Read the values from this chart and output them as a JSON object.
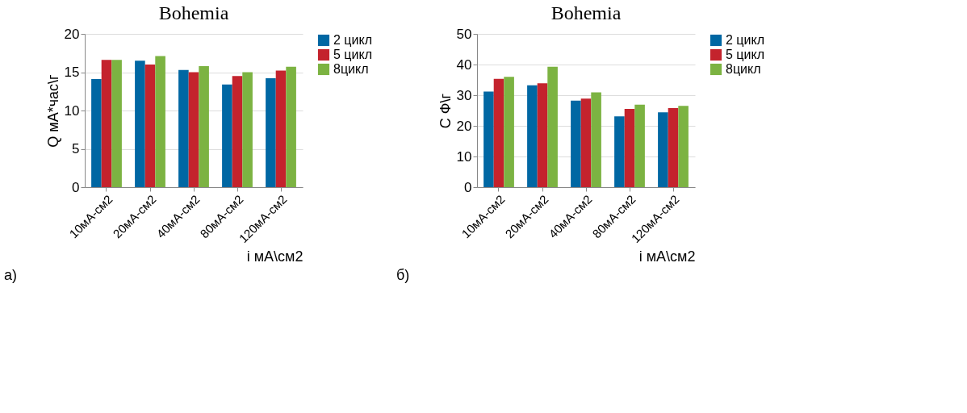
{
  "chart_data": [
    {
      "type": "bar",
      "title": "Bohemia",
      "xlabel": "i мА\\см2",
      "ylabel": "Q  мА*час\\г",
      "categories": [
        "10мА-см2",
        "20мА-см2",
        "40мА-см2",
        "80мА-см2",
        "120мА-см2"
      ],
      "series": [
        {
          "name": "2 цикл",
          "color": "#0067a3",
          "values": [
            14.1,
            16.5,
            15.3,
            13.4,
            14.2
          ]
        },
        {
          "name": "5 цикл",
          "color": "#c4232d",
          "values": [
            16.6,
            16.0,
            15.0,
            14.5,
            15.2
          ]
        },
        {
          "name": "8цикл",
          "color": "#7cb342",
          "values": [
            16.6,
            17.1,
            15.8,
            15.0,
            15.7
          ]
        }
      ],
      "ylim": [
        0,
        20
      ],
      "yticks": [
        0,
        5,
        10,
        15,
        20
      ],
      "grid": "y",
      "legend": "right",
      "annotations": [
        "а)"
      ]
    },
    {
      "type": "bar",
      "title": "Bohemia",
      "xlabel": "i мА\\см2",
      "ylabel": "С  Ф\\г",
      "categories": [
        "10мА-см2",
        "20мА-см2",
        "40мА-см2",
        "80мА-см2",
        "120мА-см2"
      ],
      "series": [
        {
          "name": "2 цикл",
          "color": "#0067a3",
          "values": [
            31.2,
            33.2,
            28.2,
            23.1,
            24.4
          ]
        },
        {
          "name": "5 цикл",
          "color": "#c4232d",
          "values": [
            35.3,
            33.9,
            28.9,
            25.5,
            25.8
          ]
        },
        {
          "name": "8цикл",
          "color": "#7cb342",
          "values": [
            36.0,
            39.3,
            30.9,
            26.9,
            26.5
          ]
        }
      ],
      "ylim": [
        0,
        50
      ],
      "yticks": [
        0,
        10,
        20,
        30,
        40,
        50
      ],
      "grid": "y",
      "legend": "right",
      "annotations": [
        "б)"
      ]
    }
  ]
}
